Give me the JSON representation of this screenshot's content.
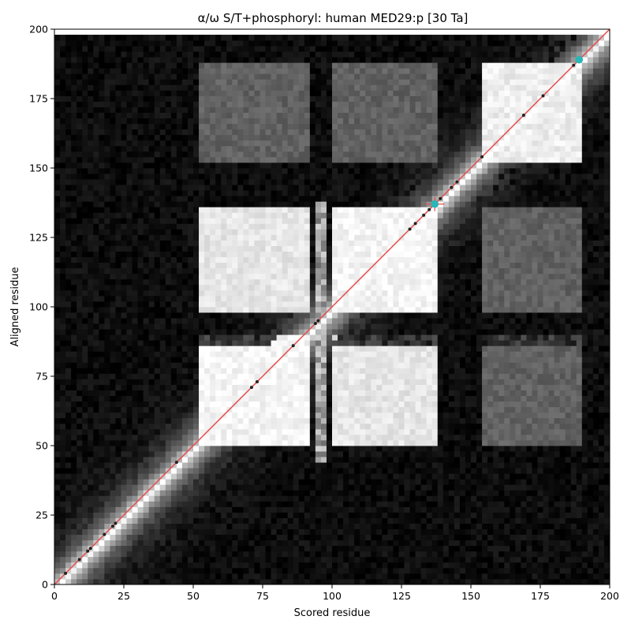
{
  "chart_data": {
    "type": "heatmap",
    "title": "α/ω S/T+phosphoryl: human MED29:p [30 Ta]",
    "xlabel": "Scored residue",
    "ylabel": "Aligned residue",
    "xlim": [
      0,
      200
    ],
    "ylim": [
      200,
      0
    ],
    "xticks": [
      0,
      25,
      50,
      75,
      100,
      125,
      150,
      175,
      200
    ],
    "yticks": [
      0,
      25,
      50,
      75,
      100,
      125,
      150,
      175,
      200
    ],
    "colormap": "grayscale",
    "grid": false,
    "diagonal_line": {
      "from": [
        0,
        0
      ],
      "to": [
        200,
        200
      ],
      "color": "#e84b4b"
    },
    "site_markers": [
      4,
      9,
      12,
      13,
      18,
      21,
      22,
      44,
      71,
      73,
      86,
      94,
      95,
      128,
      130,
      133,
      135,
      139,
      143,
      145,
      154,
      169,
      176,
      187
    ],
    "highlight_markers": [
      {
        "x": 137,
        "y": 137,
        "color": "#29b6b6",
        "crosshair": true
      },
      {
        "x": 189,
        "y": 189,
        "color": "#29b6b6",
        "crosshair": false
      }
    ],
    "blocks": [
      {
        "range": [
          53,
          92
        ],
        "intensity": 0.96
      },
      {
        "range": [
          100,
          137
        ],
        "intensity": 0.96
      },
      {
        "range": [
          155,
          190
        ],
        "intensity": 0.93
      }
    ],
    "bright_stripes": [
      {
        "position": 96,
        "intensity": 0.8
      }
    ],
    "dark_bands": [
      {
        "range": [
          88,
          99
        ],
        "intensity": 0.12
      },
      {
        "range": [
          140,
          153
        ],
        "intensity": 0.08
      },
      {
        "range": [
          190,
          199
        ],
        "intensity": 0.06
      }
    ]
  },
  "colors": {
    "background": "#ffffff",
    "diagonal": "#e84b4b",
    "site_marker": "#222222",
    "highlight": "#29b6b6"
  }
}
